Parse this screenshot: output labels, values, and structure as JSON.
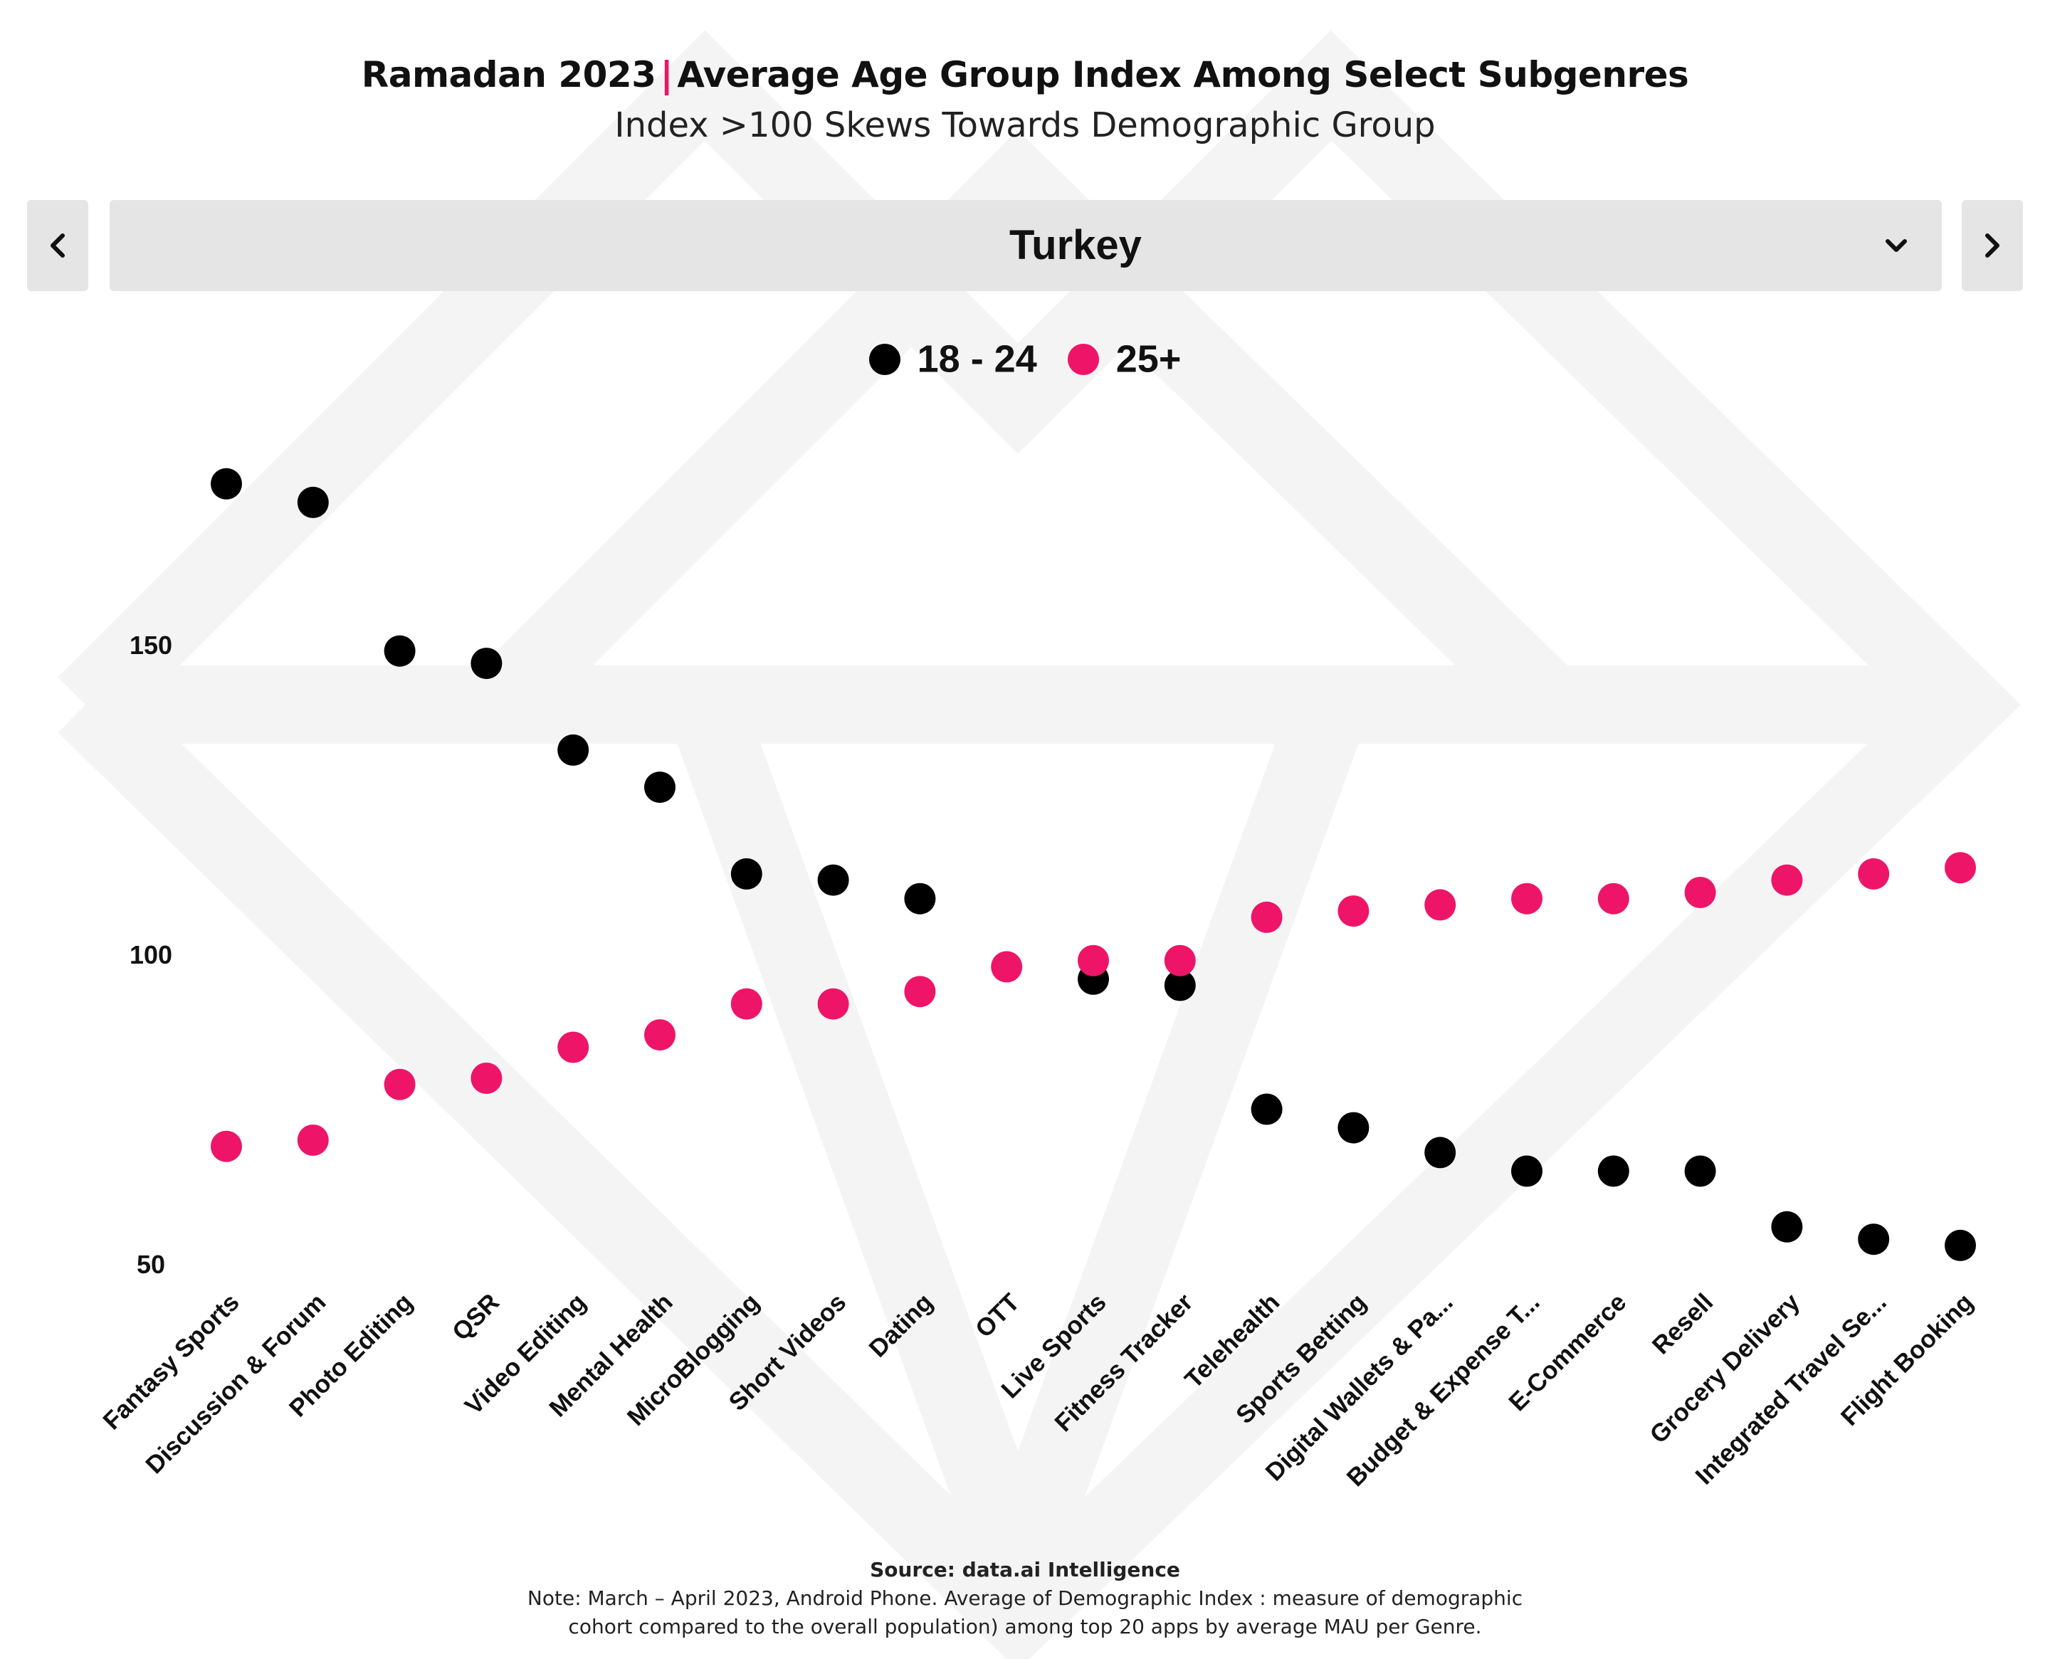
{
  "header": {
    "title_part1": "Ramadan 2023",
    "title_separator": "|",
    "title_part2": "Average Age Group Index Among Select Subgenres",
    "subtitle": "Index  >100 Skews Towards Demographic Group"
  },
  "nav": {
    "prev_icon": "chevron-left-icon",
    "next_icon": "chevron-right-icon",
    "selected_country": "Turkey",
    "dropdown_icon": "chevron-down-icon"
  },
  "footer": {
    "source": "Source: data.ai Intelligence",
    "note_line1": "Note: March – April 2023, Android Phone. Average of Demographic Index  : measure of demographic",
    "note_line2": "cohort compared to the overall population) among top 20 apps by average MAU per Genre."
  },
  "colors": {
    "series_18_24": "#000000",
    "series_25_plus": "#ee1568",
    "watermark": "#f4f4f4",
    "control_bg": "#e5e5e5"
  },
  "chart_data": {
    "type": "scatter",
    "title": "Ramadan 2023 | Average Age Group Index Among Select Subgenres",
    "subtitle": "Index  >100 Skews Towards Demographic Group",
    "categories": [
      "Fantasy Sports",
      "Discussion & Forum",
      "Photo Editing",
      "QSR",
      "Video Editing",
      "Mental Health",
      "MicroBlogging",
      "Short Videos",
      "Dating",
      "OTT",
      "Live Sports",
      "Fitness Tracker",
      "Telehealth",
      "Sports Betting",
      "Digital Wallets & Pa...",
      "Budget & Expense T...",
      "E-Commerce",
      "Resell",
      "Grocery Delivery",
      "Integrated Travel Se...",
      "Flight Booking"
    ],
    "series": [
      {
        "name": "18 - 24",
        "color": "#000000",
        "values": [
          176,
          173,
          149,
          147,
          133,
          127,
          113,
          112,
          109,
          null,
          96,
          95,
          75,
          72,
          68,
          65,
          65,
          65,
          56,
          54,
          53
        ]
      },
      {
        "name": "25+",
        "color": "#ee1568",
        "values": [
          69,
          70,
          79,
          80,
          85,
          87,
          92,
          92,
          94,
          98,
          99,
          99,
          106,
          107,
          108,
          109,
          109,
          110,
          112,
          113,
          114
        ]
      }
    ],
    "y_ticks": [
      50,
      100,
      150
    ],
    "y_tick_labels": [
      "50",
      "100",
      "150"
    ],
    "ylim": [
      50,
      176
    ],
    "grid": false,
    "legend_position": "top-center"
  }
}
